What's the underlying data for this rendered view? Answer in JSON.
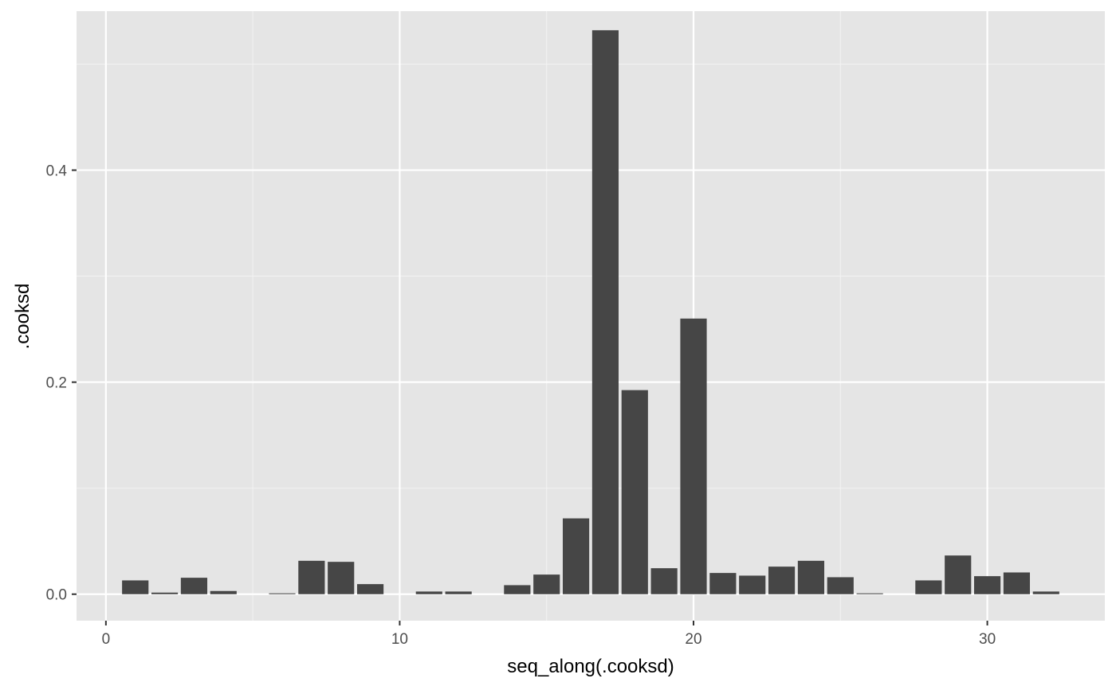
{
  "chart_data": {
    "type": "bar",
    "title": "",
    "xlabel": "seq_along(.cooksd)",
    "ylabel": ".cooksd",
    "xlim": [
      -1,
      34
    ],
    "ylim": [
      -0.025,
      0.55
    ],
    "x_ticks": [
      0,
      10,
      20,
      30
    ],
    "x_tick_labels": [
      "0",
      "10",
      "20",
      "30"
    ],
    "y_ticks": [
      0.0,
      0.2,
      0.4
    ],
    "y_tick_labels": [
      "0.0",
      "0.2",
      "0.4"
    ],
    "x_minor_ticks": [
      5,
      15,
      25
    ],
    "y_minor_ticks": [
      0.1,
      0.3,
      0.5
    ],
    "grid": true,
    "bar_width": 0.9,
    "x": [
      1,
      2,
      3,
      4,
      5,
      6,
      7,
      8,
      9,
      10,
      11,
      12,
      13,
      14,
      15,
      16,
      17,
      18,
      19,
      20,
      21,
      22,
      23,
      24,
      25,
      26,
      27,
      28,
      29,
      30,
      31,
      32
    ],
    "values": [
      0.013,
      0.0015,
      0.0155,
      0.003,
      0.0,
      0.0008,
      0.0315,
      0.0305,
      0.0095,
      0.0,
      0.0025,
      0.0025,
      0.0,
      0.0085,
      0.0185,
      0.0715,
      0.532,
      0.1925,
      0.0245,
      0.26,
      0.02,
      0.0175,
      0.026,
      0.0315,
      0.016,
      0.0008,
      0.0,
      0.013,
      0.0365,
      0.017,
      0.0205,
      0.0025
    ],
    "colors": {
      "panel_background": "#e5e5e5",
      "grid_major": "#ffffff",
      "grid_minor": "#f2f2f2",
      "bar_fill": "#464646"
    }
  }
}
